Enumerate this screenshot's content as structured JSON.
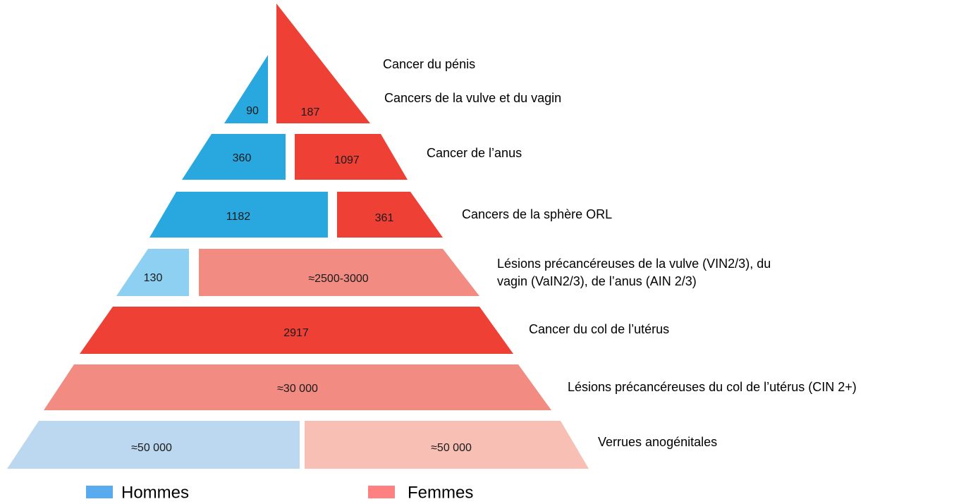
{
  "levels": [
    {
      "labels": [
        "Cancer du pénis",
        "Cancers de la vulve et du vagin"
      ],
      "segments": [
        "90",
        "187"
      ]
    },
    {
      "labels": [
        "Cancer de l’anus"
      ],
      "segments": [
        "360",
        "1097"
      ]
    },
    {
      "labels": [
        "Cancers de la sphère ORL"
      ],
      "segments": [
        "1182",
        "361"
      ]
    },
    {
      "labels": [
        "Lésions précancéreuses de la vulve (VIN2/3), du",
        "vagin (VaIN2/3), de l’anus (AIN 2/3)"
      ],
      "segments": [
        "130",
        "≈2500-3000"
      ]
    },
    {
      "labels": [
        "Cancer du col de l’utérus"
      ],
      "segments": [
        "2917"
      ]
    },
    {
      "labels": [
        "Lésions précancéreuses du col de l’utérus (CIN 2+)"
      ],
      "segments": [
        "≈30 000"
      ]
    },
    {
      "labels": [
        "Verrues anogénitales"
      ],
      "segments": [
        "≈50 000",
        "≈50 000"
      ]
    }
  ],
  "legend": [
    "Hommes",
    "Femmes"
  ]
}
